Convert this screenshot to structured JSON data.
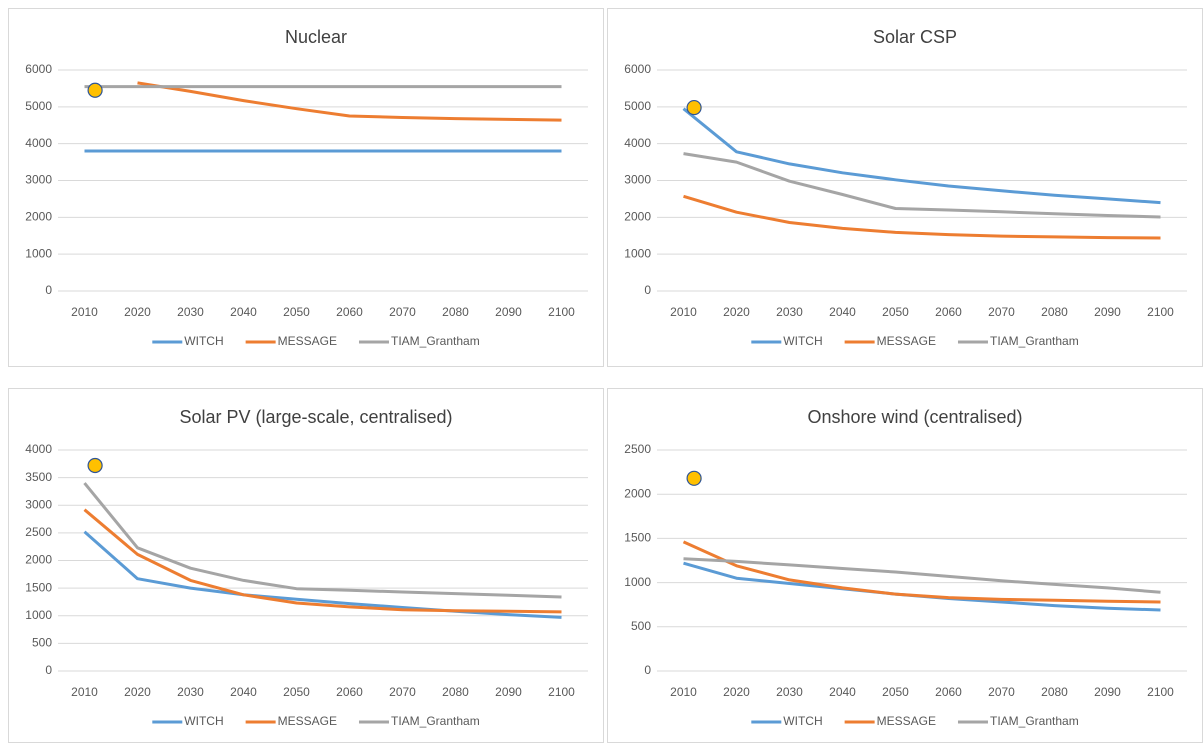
{
  "chart_data": [
    {
      "type": "line",
      "title": "Nuclear",
      "x": [
        2010,
        2020,
        2030,
        2040,
        2050,
        2060,
        2070,
        2080,
        2090,
        2100
      ],
      "xlim": [
        2005,
        2105
      ],
      "xticks": [
        2010,
        2020,
        2030,
        2040,
        2050,
        2060,
        2070,
        2080,
        2090,
        2100
      ],
      "ylim": [
        0,
        6000
      ],
      "yticks": [
        0,
        1000,
        2000,
        3000,
        4000,
        5000,
        6000
      ],
      "grid": true,
      "legend": "bottom",
      "series": [
        {
          "name": "WITCH",
          "color": "#5b9bd5",
          "values": [
            3800,
            3800,
            3800,
            3800,
            3800,
            3800,
            3800,
            3800,
            3800,
            3800
          ]
        },
        {
          "name": "MESSAGE",
          "color": "#ed7d31",
          "values": [
            null,
            5650,
            5420,
            5170,
            4950,
            4750,
            4710,
            4680,
            4660,
            4640
          ]
        },
        {
          "name": "TIAM_Grantham",
          "color": "#a5a5a5",
          "values": [
            5550,
            5550,
            5550,
            5550,
            5550,
            5550,
            5550,
            5550,
            5550,
            5550
          ]
        }
      ],
      "marker": {
        "x": 2012,
        "value": 5450,
        "color": "#ffc000"
      }
    },
    {
      "type": "line",
      "title": "Solar CSP",
      "x": [
        2010,
        2020,
        2030,
        2040,
        2050,
        2060,
        2070,
        2080,
        2090,
        2100
      ],
      "xlim": [
        2005,
        2105
      ],
      "xticks": [
        2010,
        2020,
        2030,
        2040,
        2050,
        2060,
        2070,
        2080,
        2090,
        2100
      ],
      "ylim": [
        0,
        6000
      ],
      "yticks": [
        0,
        1000,
        2000,
        3000,
        4000,
        5000,
        6000
      ],
      "grid": true,
      "legend": "bottom",
      "series": [
        {
          "name": "WITCH",
          "color": "#5b9bd5",
          "values": [
            4950,
            3780,
            3450,
            3210,
            3020,
            2850,
            2720,
            2600,
            2500,
            2400
          ]
        },
        {
          "name": "MESSAGE",
          "color": "#ed7d31",
          "values": [
            2570,
            2140,
            1860,
            1700,
            1590,
            1530,
            1490,
            1470,
            1450,
            1440
          ]
        },
        {
          "name": "TIAM_Grantham",
          "color": "#a5a5a5",
          "values": [
            3730,
            3500,
            2980,
            2620,
            2240,
            2200,
            2150,
            2100,
            2050,
            2010
          ]
        }
      ],
      "marker": {
        "x": 2012,
        "value": 4980,
        "color": "#ffc000"
      }
    },
    {
      "type": "line",
      "title": "Solar PV (large-scale, centralised)",
      "x": [
        2010,
        2020,
        2030,
        2040,
        2050,
        2060,
        2070,
        2080,
        2090,
        2100
      ],
      "xlim": [
        2005,
        2105
      ],
      "xticks": [
        2010,
        2020,
        2030,
        2040,
        2050,
        2060,
        2070,
        2080,
        2090,
        2100
      ],
      "ylim": [
        0,
        4000
      ],
      "yticks": [
        0,
        500,
        1000,
        1500,
        2000,
        2500,
        3000,
        3500,
        4000
      ],
      "grid": true,
      "legend": "bottom",
      "series": [
        {
          "name": "WITCH",
          "color": "#5b9bd5",
          "values": [
            2520,
            1670,
            1500,
            1380,
            1300,
            1220,
            1150,
            1080,
            1020,
            970
          ]
        },
        {
          "name": "MESSAGE",
          "color": "#ed7d31",
          "values": [
            2920,
            2110,
            1640,
            1380,
            1230,
            1160,
            1110,
            1090,
            1080,
            1070
          ]
        },
        {
          "name": "TIAM_Grantham",
          "color": "#a5a5a5",
          "values": [
            3400,
            2230,
            1860,
            1640,
            1490,
            1460,
            1430,
            1400,
            1370,
            1340
          ]
        }
      ],
      "marker": {
        "x": 2012,
        "value": 3720,
        "color": "#ffc000"
      }
    },
    {
      "type": "line",
      "title": "Onshore wind (centralised)",
      "x": [
        2010,
        2020,
        2030,
        2040,
        2050,
        2060,
        2070,
        2080,
        2090,
        2100
      ],
      "xlim": [
        2005,
        2105
      ],
      "xticks": [
        2010,
        2020,
        2030,
        2040,
        2050,
        2060,
        2070,
        2080,
        2090,
        2100
      ],
      "ylim": [
        0,
        2500
      ],
      "yticks": [
        0,
        500,
        1000,
        1500,
        2000,
        2500
      ],
      "grid": true,
      "legend": "bottom",
      "series": [
        {
          "name": "WITCH",
          "color": "#5b9bd5",
          "values": [
            1220,
            1050,
            990,
            930,
            870,
            820,
            780,
            740,
            710,
            690
          ]
        },
        {
          "name": "MESSAGE",
          "color": "#ed7d31",
          "values": [
            1460,
            1190,
            1030,
            940,
            870,
            830,
            810,
            800,
            790,
            780
          ]
        },
        {
          "name": "TIAM_Grantham",
          "color": "#a5a5a5",
          "values": [
            1270,
            1240,
            1200,
            1160,
            1120,
            1070,
            1020,
            980,
            940,
            890
          ]
        }
      ],
      "marker": {
        "x": 2012,
        "value": 2180,
        "color": "#ffc000"
      }
    }
  ]
}
